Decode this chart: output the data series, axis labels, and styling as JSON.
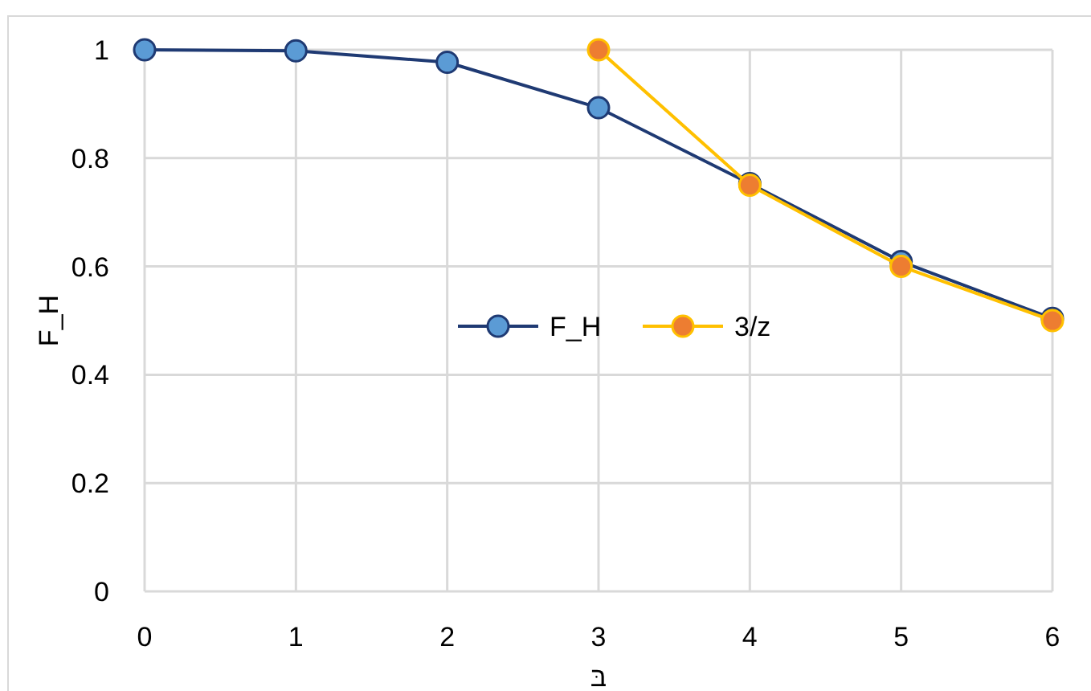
{
  "chart_data": {
    "type": "line",
    "xlabel": "בּ",
    "ylabel": "F_H",
    "xlim": [
      0,
      6
    ],
    "xticks": [
      0,
      1,
      2,
      3,
      4,
      5,
      6
    ],
    "ylim": [
      0,
      1
    ],
    "yticks": [
      0,
      0.2,
      0.4,
      0.6,
      0.8,
      1
    ],
    "grid": true,
    "legend": "center",
    "marker": "circle",
    "line_style": "solid",
    "series": [
      {
        "name": "F_H",
        "color": "#1f3a73",
        "colors": [
          "#5b9bd5",
          "#5b9bd5",
          "#5b9bd5",
          "#5b9bd5",
          "#5b9bd5",
          "#5b9bd5",
          "#5b9bd5"
        ],
        "x": [
          0,
          1,
          2,
          3,
          4,
          5,
          6
        ],
        "values": [
          1,
          0.998,
          0.977,
          0.893,
          0.753,
          0.609,
          0.504
        ]
      },
      {
        "name": "3/z",
        "color": "#ffc000",
        "colors": [
          "#ed7d31",
          "#ed7d31",
          "#ed7d31",
          "#ed7d31"
        ],
        "x": [
          3,
          4,
          5,
          6
        ],
        "values": [
          1,
          0.75,
          0.6,
          0.5
        ]
      }
    ]
  }
}
